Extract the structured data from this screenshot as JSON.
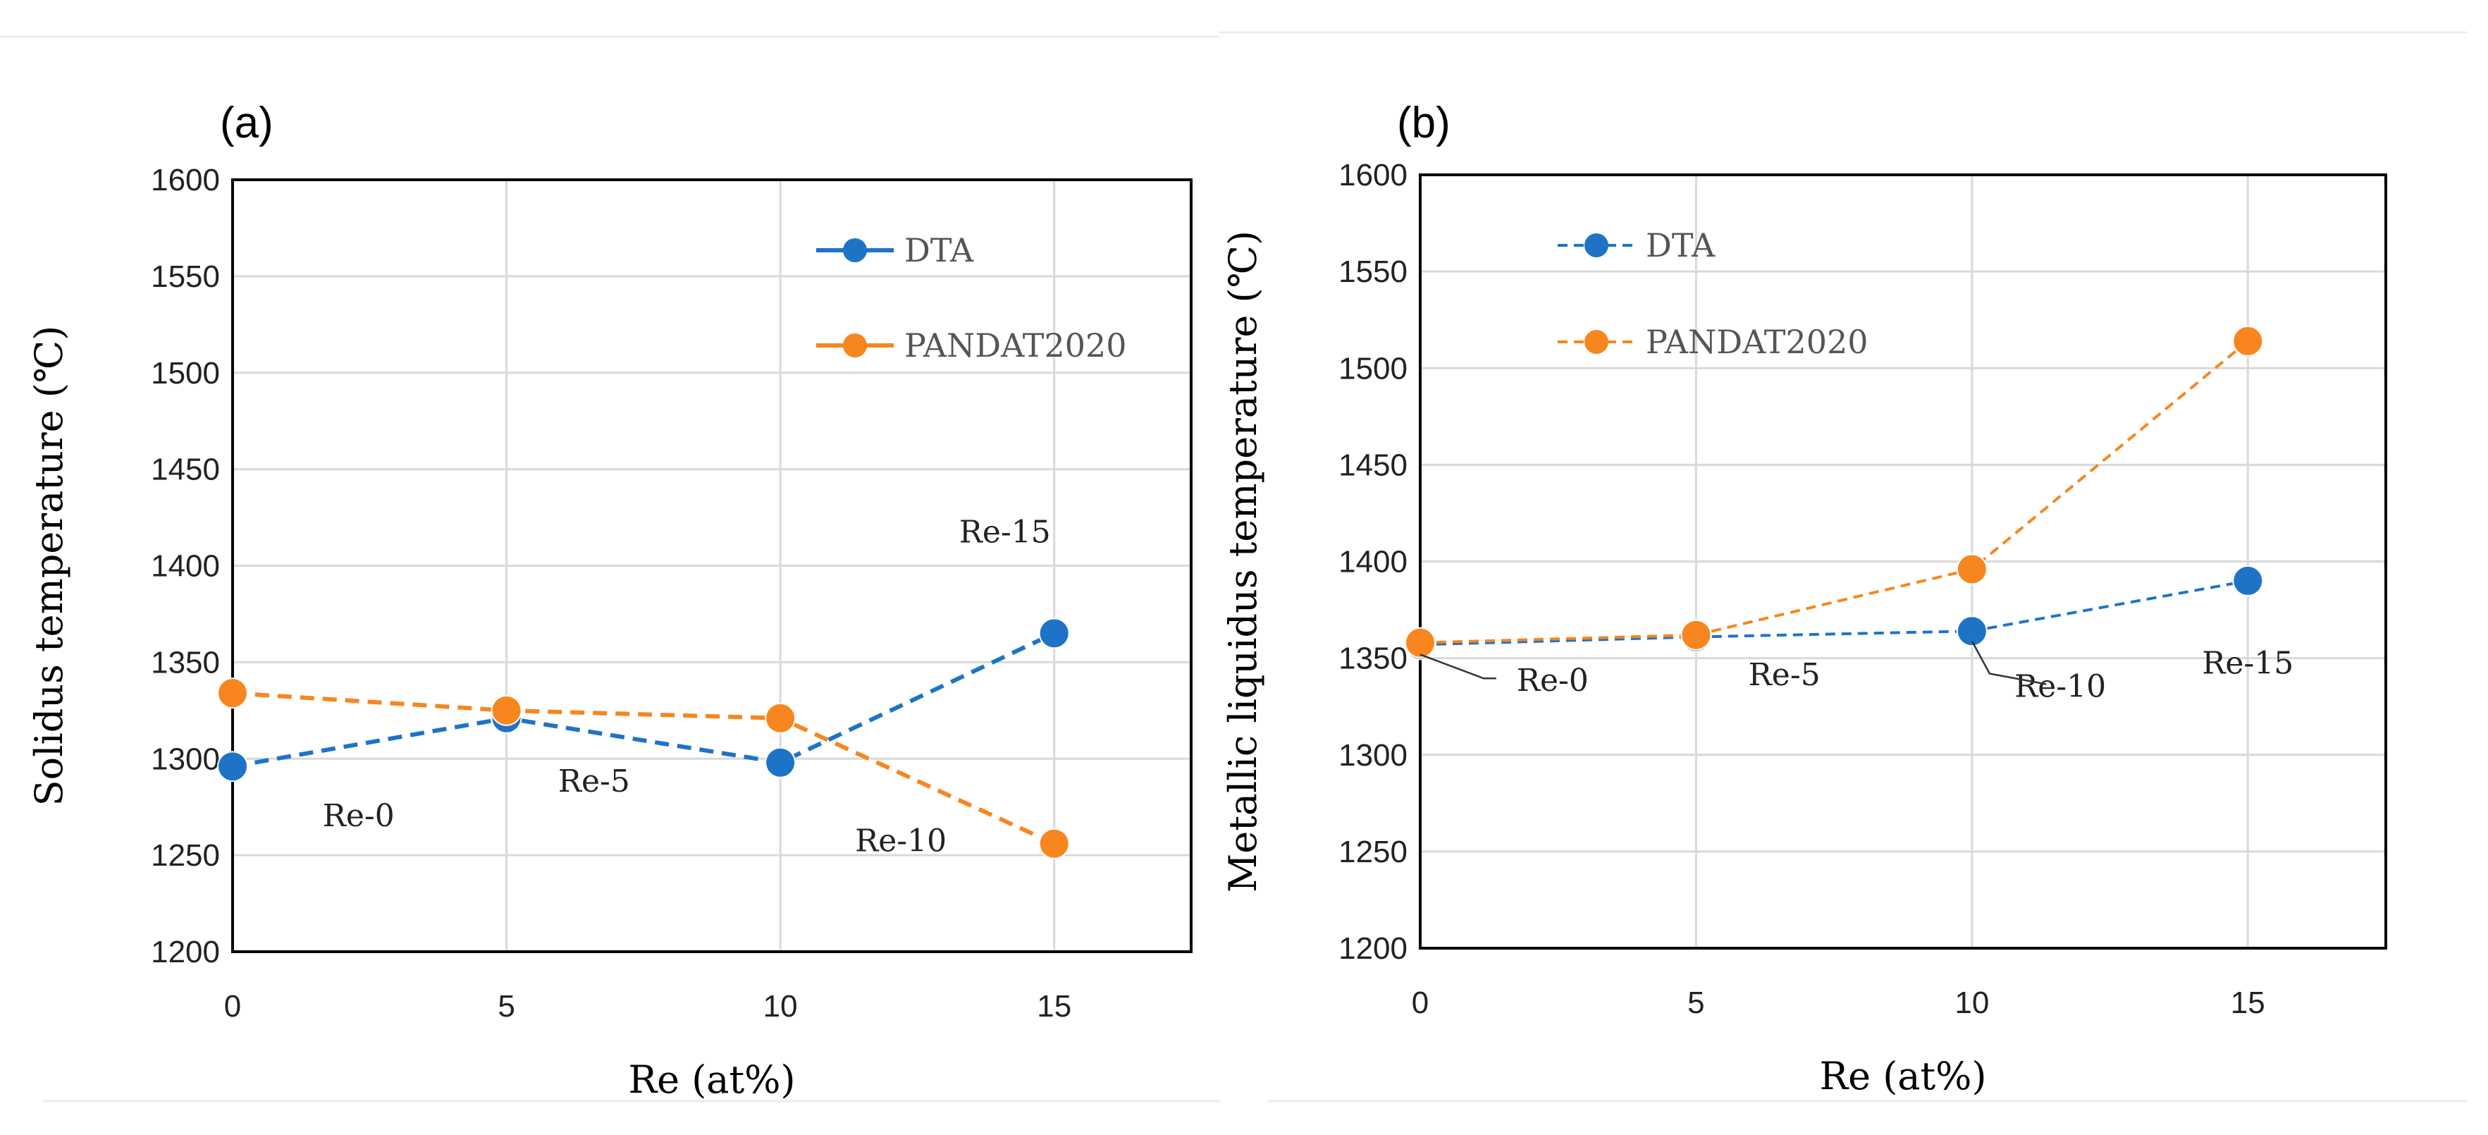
{
  "chart_data": [
    {
      "type": "line",
      "panel_label": "(a)",
      "x": [
        0,
        5,
        10,
        15
      ],
      "xticks": [
        "0",
        "5",
        "10",
        "15"
      ],
      "xlim": [
        0,
        17.5
      ],
      "ylim": [
        1200,
        1600
      ],
      "yticks": [
        "1200",
        "1250",
        "1300",
        "1350",
        "1400",
        "1450",
        "1500",
        "1550",
        "1600"
      ],
      "xlabel": "Re (at%)",
      "ylabel": "Solidus temperature (℃)",
      "grid": true,
      "legend_position": "top-right",
      "series": [
        {
          "name": "DTA",
          "color": "#1f73c7",
          "values": [
            1296,
            1321,
            1298,
            1365
          ]
        },
        {
          "name": "PANDAT2020",
          "color": "#f7861f",
          "values": [
            1334,
            1325,
            1321,
            1256
          ]
        }
      ],
      "annotations": [
        {
          "text": "Re-0",
          "x": 2.3,
          "y": 1265
        },
        {
          "text": "Re-5",
          "x": 6.6,
          "y": 1283
        },
        {
          "text": "Re-10",
          "x": 12.2,
          "y": 1252
        },
        {
          "text": "Re-15",
          "x": 14.1,
          "y": 1412
        }
      ]
    },
    {
      "type": "line",
      "panel_label": "(b)",
      "x": [
        0,
        5,
        10,
        15
      ],
      "xticks": [
        "0",
        "5",
        "10",
        "15"
      ],
      "xlim": [
        0,
        17.5
      ],
      "ylim": [
        1200,
        1600
      ],
      "yticks": [
        "1200",
        "1250",
        "1300",
        "1350",
        "1400",
        "1450",
        "1500",
        "1550",
        "1600"
      ],
      "xlabel": "Re (at%)",
      "ylabel": "Metallic liquidus temperature (℃)",
      "grid": true,
      "legend_position": "top-left",
      "series": [
        {
          "name": "DTA",
          "color": "#1f73c7",
          "values": [
            1357,
            1361,
            1364,
            1390
          ]
        },
        {
          "name": "PANDAT2020",
          "color": "#f7861f",
          "values": [
            1358,
            1362,
            1396,
            1514
          ]
        }
      ],
      "annotations": [
        {
          "text": "Re-0",
          "x": 2.4,
          "y": 1333
        },
        {
          "text": "Re-5",
          "x": 6.6,
          "y": 1336
        },
        {
          "text": "Re-10",
          "x": 11.6,
          "y": 1330
        },
        {
          "text": "Re-15",
          "x": 15.0,
          "y": 1342
        }
      ]
    }
  ]
}
